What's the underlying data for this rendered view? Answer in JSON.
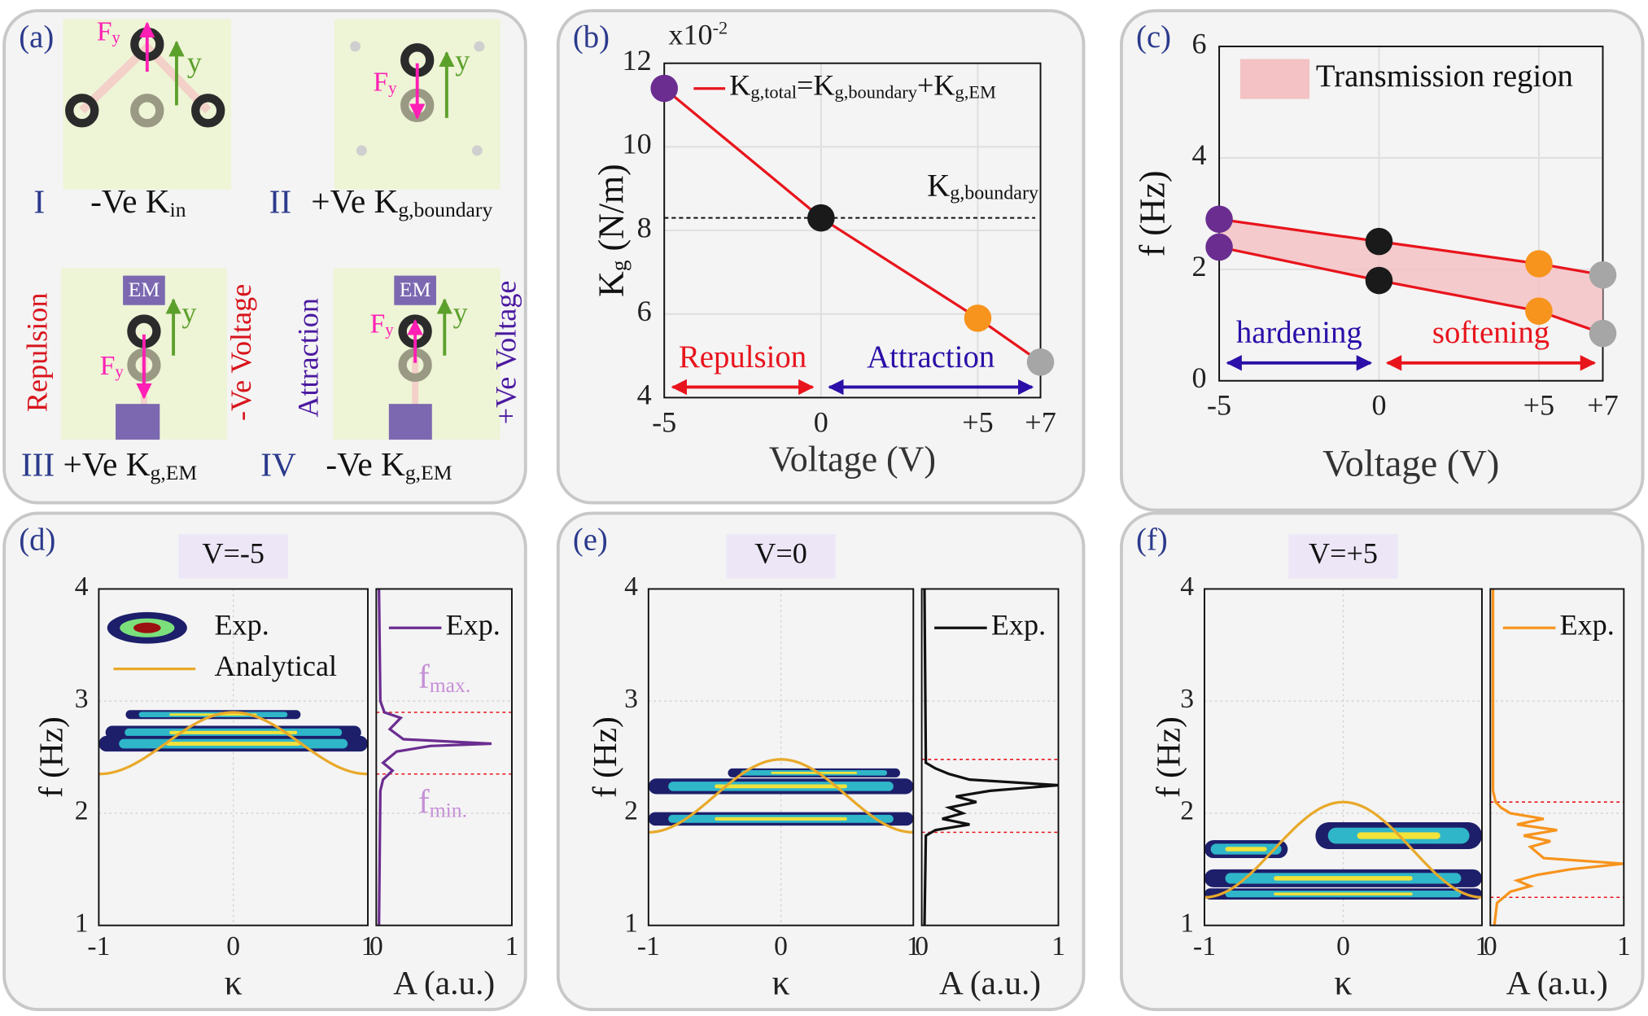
{
  "schematic": {
    "label": "(a)",
    "cells": [
      {
        "numeral": "I",
        "caption": [
          "-Ve K",
          "in"
        ],
        "force": [
          "F",
          "y"
        ],
        "axis": "y"
      },
      {
        "numeral": "II",
        "caption": [
          "+Ve K",
          "g,boundary"
        ],
        "force": [
          "F",
          "y"
        ],
        "axis": "y"
      },
      {
        "numeral": "III",
        "caption": [
          "+Ve K",
          "g,EM"
        ],
        "force": [
          "F",
          "y"
        ],
        "axis": "y",
        "em": "EM"
      },
      {
        "numeral": "IV",
        "caption": [
          "-Ve K",
          "g,EM"
        ],
        "force": [
          "F",
          "y"
        ],
        "axis": "y",
        "em": "EM"
      }
    ],
    "side_labels": [
      "Repulsion",
      "-Ve Voltage",
      "Attraction",
      "+Ve Voltage"
    ]
  },
  "chart_data": [
    {
      "type": "line",
      "label": "(b)",
      "multiplier": [
        "x10",
        "-2"
      ],
      "xlabel": "Voltage (V)",
      "ylabel": [
        "K",
        "g",
        " (N/m)"
      ],
      "x": [
        -5,
        0,
        5,
        7
      ],
      "series": [
        {
          "name": [
            "K",
            "g,total",
            "=K",
            "g,boundary",
            "+K",
            "g,EM"
          ],
          "color": "#e8141c",
          "values": [
            11.4,
            8.3,
            5.9,
            4.85
          ]
        }
      ],
      "marker_colors": [
        "#6b2d90",
        "#1a1a1a",
        "#f7941d",
        "#a6a6a6"
      ],
      "reference": {
        "value": 8.3,
        "label": [
          "K",
          "g,boundary"
        ]
      },
      "regions": [
        {
          "label": "Repulsion",
          "from": -5,
          "to": 0,
          "color": "#e8141c"
        },
        {
          "label": "Attraction",
          "from": 0,
          "to": 7,
          "color": "#2b0fa8"
        }
      ],
      "xlim": [
        -5,
        7
      ],
      "xticks": [
        -5,
        0,
        {
          "value": 5,
          "label": "+5"
        },
        {
          "value": 7,
          "label": "+7"
        }
      ],
      "ylim": [
        4,
        12
      ],
      "yticks": [
        4,
        6,
        8,
        10,
        12
      ],
      "grid": true
    },
    {
      "type": "range",
      "label": "(c)",
      "xlabel": "Voltage (V)",
      "ylabel": "f (Hz)",
      "x": [
        -5,
        0,
        5,
        7
      ],
      "series": [
        {
          "color": "#e8141c",
          "values": [
            2.9,
            2.5,
            2.1,
            1.9
          ]
        },
        {
          "color": "#e8141c",
          "values": [
            2.4,
            1.8,
            1.25,
            0.85
          ]
        }
      ],
      "fill": {
        "name": "Transmission region",
        "color": "#f4c2c4"
      },
      "marker_colors": [
        "#6b2d90",
        "#1a1a1a",
        "#f7941d",
        "#a6a6a6"
      ],
      "regions": [
        {
          "label": "hardening",
          "from": -5,
          "to": 0,
          "color": "#2b0fa8"
        },
        {
          "label": "softening",
          "from": 0,
          "to": 7,
          "color": "#e8141c"
        }
      ],
      "xlim": [
        -5,
        7
      ],
      "xticks": [
        -5,
        0,
        {
          "value": 5,
          "label": "+5"
        },
        {
          "value": 7,
          "label": "+7"
        }
      ],
      "ylim": [
        0,
        6
      ],
      "yticks": [
        0,
        2,
        4,
        6
      ],
      "grid": true
    },
    {
      "type": "dispersion",
      "label": "(d)",
      "title": "V=-5",
      "xlabel": "κ",
      "ylabel": "f (Hz)",
      "xlim": [
        -1,
        1
      ],
      "xticks": [
        -1,
        0,
        1
      ],
      "ylim": [
        1,
        4
      ],
      "yticks": [
        1,
        2,
        3,
        4
      ],
      "f_max": 2.9,
      "f_min": 2.35,
      "fmax_label": [
        "f",
        "max."
      ],
      "fmin_label": [
        "f",
        "min."
      ],
      "analytical": {
        "name": "Analytical",
        "color": "#e8a92a"
      },
      "exp": {
        "name": "Exp.",
        "bands": [
          {
            "f": 2.72,
            "h": 0.06,
            "k_range": [
              -0.95,
              0.95
            ]
          },
          {
            "f": 2.62,
            "h": 0.07,
            "k_range": [
              -1,
              1
            ]
          },
          {
            "f": 2.88,
            "h": 0.04,
            "k_range": [
              -0.8,
              0.5
            ]
          }
        ]
      },
      "spectrum": {
        "name": "Exp.",
        "color": "#6b2d90",
        "xlabel": "A (a.u.)",
        "xlim": [
          0,
          1
        ],
        "xticks": [
          0,
          1
        ],
        "f": [
          1,
          2.2,
          2.3,
          2.38,
          2.45,
          2.55,
          2.6,
          2.62,
          2.66,
          2.75,
          2.85,
          2.9,
          3.0,
          4
        ],
        "A": [
          0.02,
          0.03,
          0.05,
          0.12,
          0.05,
          0.15,
          0.4,
          0.85,
          0.2,
          0.1,
          0.18,
          0.06,
          0.03,
          0.02
        ]
      }
    },
    {
      "type": "dispersion",
      "label": "(e)",
      "title": "V=0",
      "xlabel": "κ",
      "ylabel": "f (Hz)",
      "xlim": [
        -1,
        1
      ],
      "xticks": [
        -1,
        0,
        1
      ],
      "ylim": [
        1,
        4
      ],
      "yticks": [
        1,
        2,
        3,
        4
      ],
      "f_max": 2.48,
      "f_min": 1.83,
      "analytical": {
        "color": "#e8a92a"
      },
      "exp": {
        "bands": [
          {
            "f": 2.24,
            "h": 0.07,
            "k_range": [
              -1,
              1
            ]
          },
          {
            "f": 1.95,
            "h": 0.06,
            "k_range": [
              -1,
              1
            ]
          },
          {
            "f": 2.36,
            "h": 0.04,
            "k_range": [
              -0.4,
              0.9
            ]
          }
        ]
      },
      "spectrum": {
        "name": "Exp.",
        "color": "#111111",
        "xlabel": "A (a.u.)",
        "xlim": [
          0,
          1
        ],
        "xticks": [
          0,
          1
        ],
        "f": [
          1,
          1.8,
          1.85,
          1.9,
          1.95,
          2.0,
          2.05,
          2.1,
          2.15,
          2.2,
          2.25,
          2.3,
          2.35,
          2.4,
          2.45,
          4
        ],
        "A": [
          0.02,
          0.03,
          0.1,
          0.35,
          0.15,
          0.3,
          0.2,
          0.4,
          0.25,
          0.5,
          1.0,
          0.35,
          0.2,
          0.1,
          0.03,
          0.02
        ]
      }
    },
    {
      "type": "dispersion",
      "label": "(f)",
      "title": "V=+5",
      "xlabel": "κ",
      "ylabel": "f (Hz)",
      "xlim": [
        -1,
        1
      ],
      "xticks": [
        -1,
        0,
        1
      ],
      "ylim": [
        1,
        4
      ],
      "yticks": [
        1,
        2,
        3,
        4
      ],
      "f_max": 2.1,
      "f_min": 1.25,
      "analytical": {
        "color": "#e8a92a"
      },
      "exp": {
        "bands": [
          {
            "f": 1.42,
            "h": 0.08,
            "k_range": [
              -1,
              1
            ]
          },
          {
            "f": 1.28,
            "h": 0.05,
            "k_range": [
              -1,
              1
            ]
          },
          {
            "f": 1.8,
            "h": 0.12,
            "k_range": [
              -0.2,
              1
            ]
          },
          {
            "f": 1.68,
            "h": 0.08,
            "k_range": [
              -1,
              -0.4
            ]
          }
        ]
      },
      "spectrum": {
        "name": "Exp.",
        "color": "#f7941d",
        "xlabel": "A (a.u.)",
        "xlim": [
          0,
          1
        ],
        "xticks": [
          0,
          1
        ],
        "f": [
          1,
          1.2,
          1.25,
          1.3,
          1.35,
          1.4,
          1.45,
          1.5,
          1.55,
          1.6,
          1.7,
          1.75,
          1.8,
          1.85,
          1.9,
          1.95,
          2.0,
          2.05,
          2.1,
          2.2,
          4
        ],
        "A": [
          0.03,
          0.05,
          0.1,
          0.15,
          0.3,
          0.2,
          0.35,
          0.6,
          1.0,
          0.4,
          0.3,
          0.45,
          0.25,
          0.5,
          0.2,
          0.4,
          0.15,
          0.08,
          0.04,
          0.02,
          0.02
        ]
      }
    }
  ]
}
